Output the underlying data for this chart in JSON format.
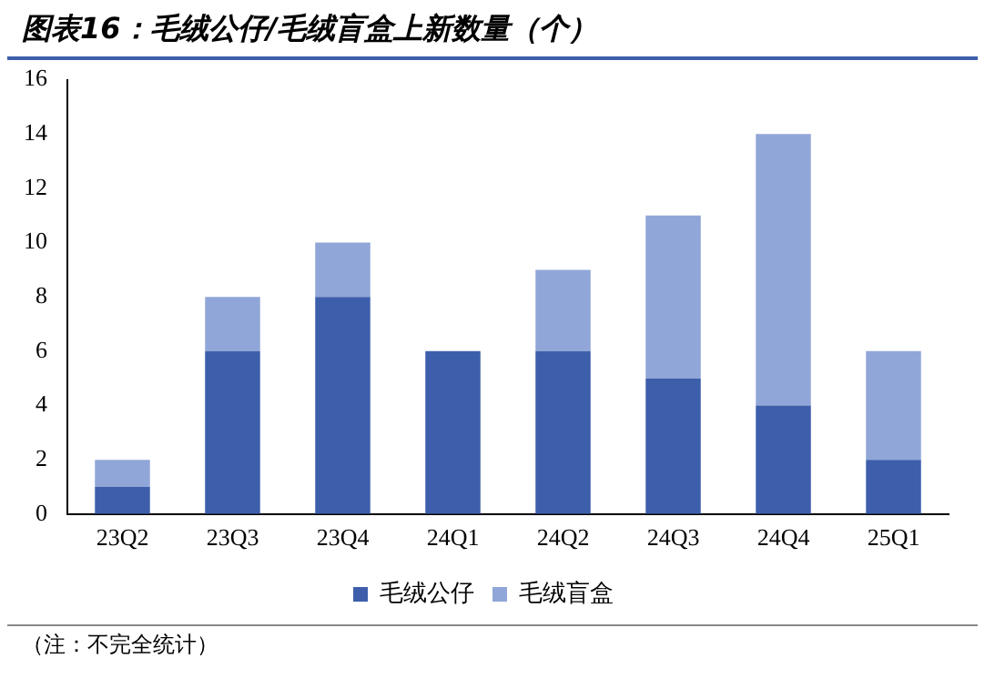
{
  "chart_data": {
    "type": "bar",
    "title": "图表16：毛绒公仔/毛绒盲盒上新数量（个）",
    "categories": [
      "23Q2",
      "23Q3",
      "23Q4",
      "24Q1",
      "24Q2",
      "24Q3",
      "24Q4",
      "25Q1"
    ],
    "stacked": true,
    "series": [
      {
        "name": "毛绒公仔",
        "color": "#3d5fab",
        "values": [
          1,
          6,
          8,
          6,
          6,
          5,
          4,
          2
        ]
      },
      {
        "name": "毛绒盲盒",
        "color": "#91a6d8",
        "values": [
          1,
          2,
          2,
          0,
          3,
          6,
          10,
          4
        ]
      }
    ],
    "ylim": [
      0,
      16
    ],
    "yticks": [
      0,
      2,
      4,
      6,
      8,
      10,
      12,
      14,
      16
    ],
    "grid": false,
    "legend": "bottom",
    "annotations": [
      "（注：不完全统计）"
    ]
  }
}
